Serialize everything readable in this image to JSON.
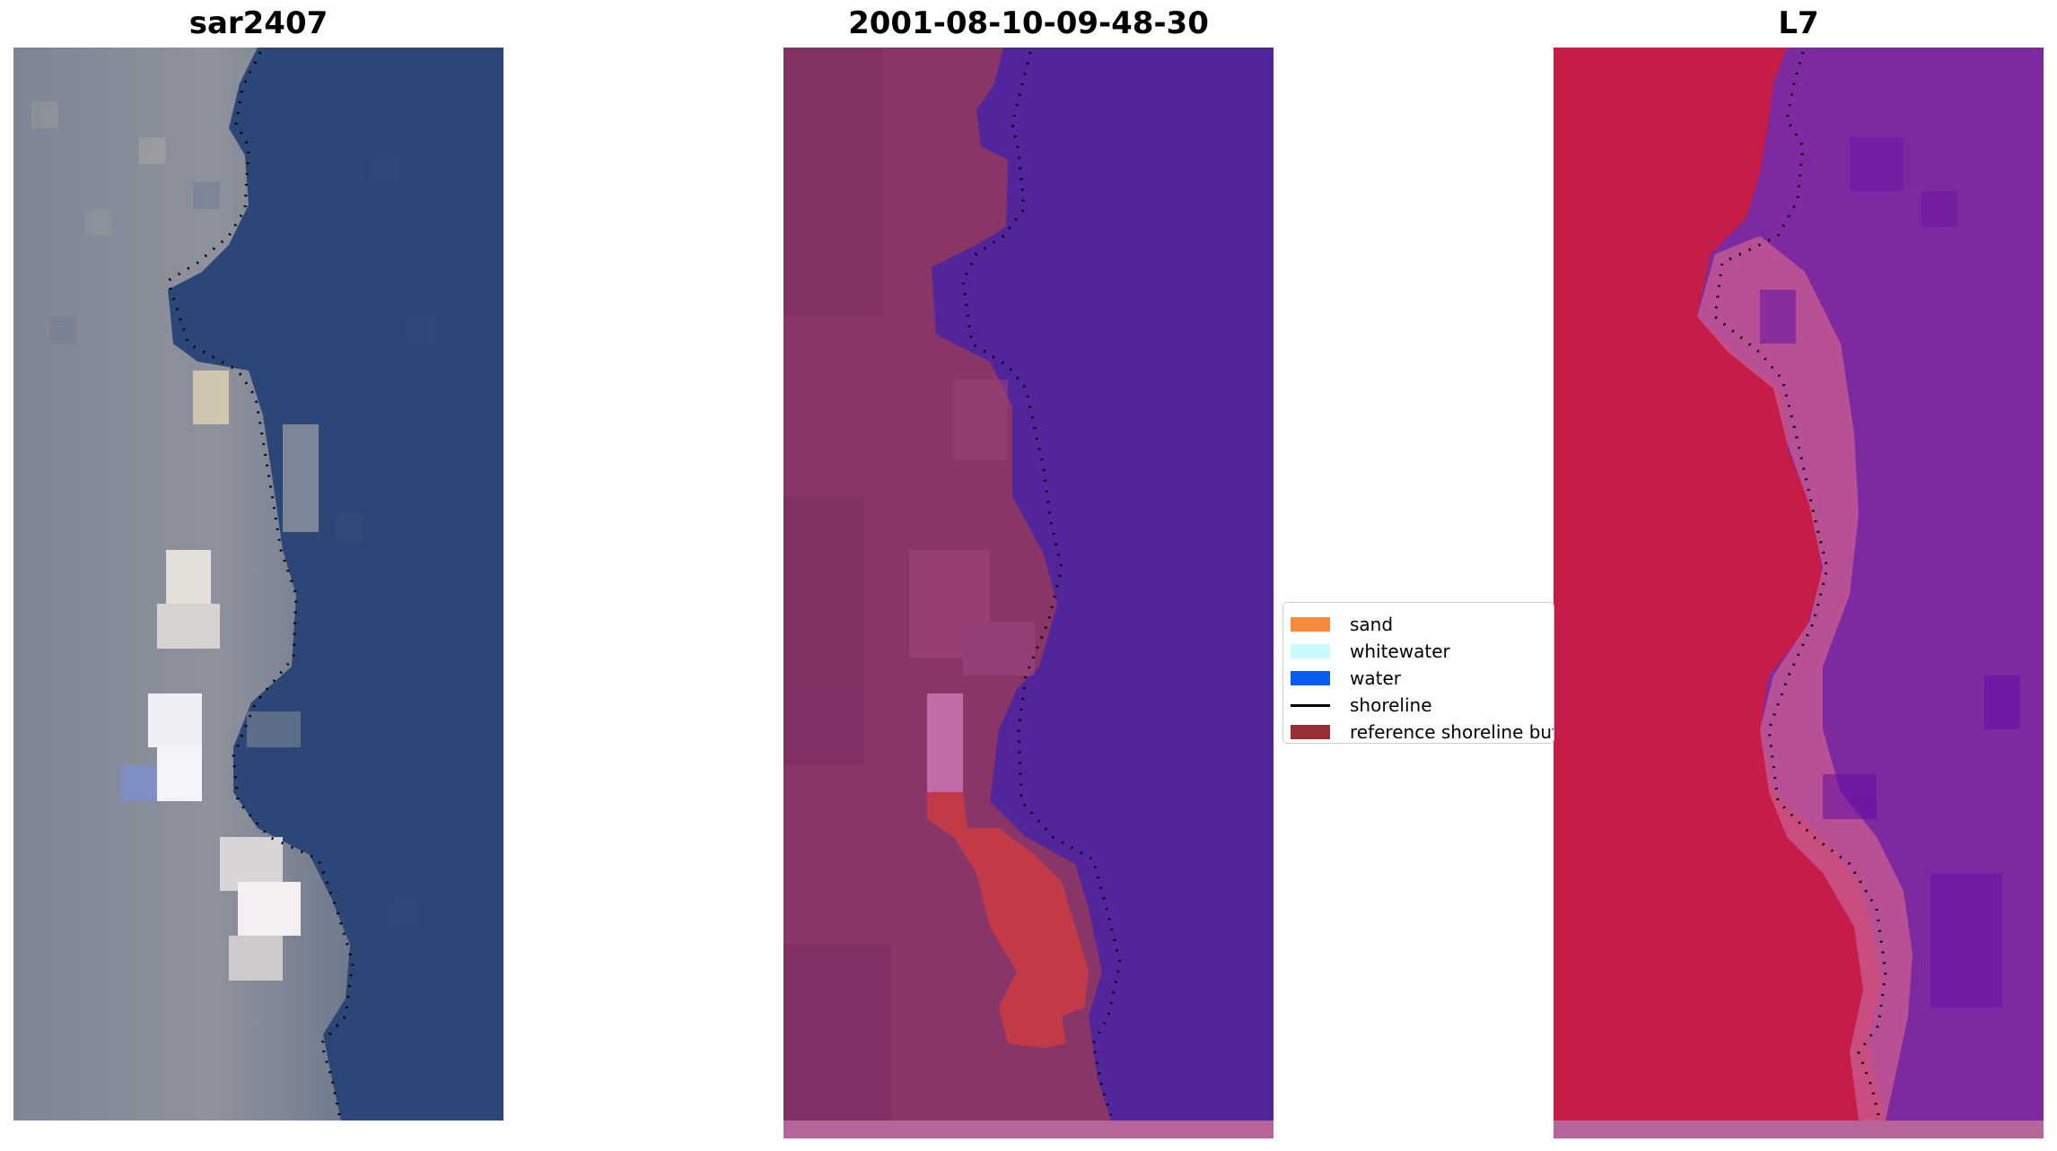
{
  "panels": [
    {
      "title": "sar2407"
    },
    {
      "title": "2001-08-10-09-48-30"
    },
    {
      "title": "L7"
    }
  ],
  "legend": {
    "items": [
      {
        "label": "sand",
        "color": "#f58b3a",
        "kind": "patch"
      },
      {
        "label": "whitewater",
        "color": "#c8fbfb",
        "kind": "patch"
      },
      {
        "label": "water",
        "color": "#0a5bf0",
        "kind": "patch"
      },
      {
        "label": "shoreline",
        "color": "#000000",
        "kind": "line"
      },
      {
        "label": "reference shoreline buffer",
        "color": "#9b2d35",
        "kind": "patch"
      }
    ]
  },
  "colors": {
    "rgb_land": "#8f949f",
    "rgb_water": "#2b4677",
    "classified_land": "#8a3568",
    "classified_water": "#52269a",
    "buffer": "#c23a48",
    "false_color_land": "#c51d48",
    "false_color_water": "#7d2aa0",
    "footer_strip": "#b7649b"
  }
}
